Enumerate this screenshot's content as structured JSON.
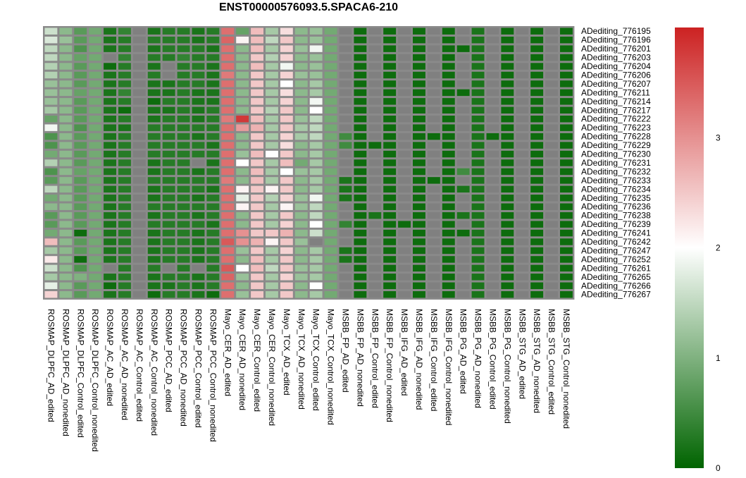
{
  "chart_data": {
    "type": "heatmap",
    "title": "ENST00000576093.5.SPACA6-210",
    "columns": [
      "ROSMAP_DLPFC_AD_edited",
      "ROSMAP_DLPFC_AD_nonedited",
      "ROSMAP_DLPFC_Control_edited",
      "ROSMAP_DLPFC_Control_nonedited",
      "ROSMAP_AC_AD_edited",
      "ROSMAP_AC_AD_nonedited",
      "ROSMAP_AC_Control_edited",
      "ROSMAP_AC_Control_nonedited",
      "ROSMAP_PCC_AD_edited",
      "ROSMAP_PCC_AD_nonedited",
      "ROSMAP_PCC_Control_edited",
      "ROSMAP_PCC_Control_nonedited",
      "Mayo_CER_AD_edited",
      "Mayo_CER_AD_nonedited",
      "Mayo_CER_Control_edited",
      "Mayo_CER_Control_nonedited",
      "Mayo_TCX_AD_edited",
      "Mayo_TCX_AD_nonedited",
      "Mayo_TCX_Control_edited",
      "Mayo_TCX_Control_nonedited",
      "MSBB_FP_AD_edited",
      "MSBB_FP_AD_nonedited",
      "MSBB_FP_Control_edited",
      "MSBB_FP_Control_nonedited",
      "MSBB_IFG_AD_edited",
      "MSBB_IFG_AD_nonedited",
      "MSBB_IFG_Control_edited",
      "MSBB_IFG_Control_nonedited",
      "MSBB_PG_AD_edited",
      "MSBB_PG_AD_nonedited",
      "MSBB_PG_Control_edited",
      "MSBB_PG_Control_nonedited",
      "MSBB_STG_AD_edited",
      "MSBB_STG_AD_nonedited",
      "MSBB_STG_Control_edited",
      "MSBB_STG_Control_nonedited"
    ],
    "rows": [
      "ADediting_776195",
      "ADediting_776196",
      "ADediting_776201",
      "ADediting_776203",
      "ADediting_776204",
      "ADediting_776206",
      "ADediting_776207",
      "ADediting_776211",
      "ADediting_776214",
      "ADediting_776217",
      "ADediting_776222",
      "ADediting_776223",
      "ADediting_776228",
      "ADediting_776229",
      "ADediting_776230",
      "ADediting_776231",
      "ADediting_776232",
      "ADediting_776233",
      "ADediting_776234",
      "ADediting_776235",
      "ADediting_776236",
      "ADediting_776238",
      "ADediting_776239",
      "ADediting_776241",
      "ADediting_776242",
      "ADediting_776247",
      "ADediting_776252",
      "ADediting_776261",
      "ADediting_776265",
      "ADediting_776266",
      "ADediting_776267"
    ],
    "values": [
      [
        1.6,
        1.1,
        0.7,
        0.9,
        0.2,
        0.4,
        null,
        0.2,
        0.3,
        0.3,
        0.2,
        0.3,
        3.3,
        0.8,
        2.6,
        1.3,
        2.3,
        1.1,
        1.2,
        0.9,
        null,
        0.1,
        null,
        0.1,
        null,
        0.1,
        null,
        0.1,
        null,
        0.2,
        null,
        0.1,
        null,
        0.1,
        null,
        0.1
      ],
      [
        1.7,
        1.2,
        0.7,
        0.9,
        0.2,
        0.3,
        null,
        0.3,
        0.3,
        0.3,
        0.2,
        0.3,
        3.4,
        2.1,
        2.6,
        1.5,
        2.5,
        1.1,
        1.2,
        0.9,
        null,
        0.1,
        null,
        0.1,
        null,
        0.1,
        null,
        0.1,
        null,
        0.2,
        null,
        0.1,
        null,
        0.1,
        null,
        0.1
      ],
      [
        1.5,
        1.1,
        0.6,
        0.9,
        0.2,
        0.3,
        null,
        0.2,
        0.3,
        0.3,
        0.3,
        0.2,
        3.3,
        1.1,
        2.6,
        1.3,
        2.4,
        1.2,
        1.9,
        0.9,
        null,
        0.1,
        null,
        0.1,
        null,
        0.1,
        null,
        0.1,
        0.1,
        0.2,
        null,
        0.1,
        null,
        0.1,
        null,
        0.1
      ],
      [
        1.5,
        1.1,
        0.8,
        0.9,
        null,
        0.4,
        null,
        0.3,
        0.3,
        0.4,
        0.3,
        0.3,
        3.3,
        1.1,
        2.5,
        1.4,
        2.4,
        1.1,
        1.2,
        0.9,
        null,
        0.1,
        null,
        0.1,
        null,
        0.1,
        null,
        0.1,
        null,
        0.2,
        null,
        0.1,
        null,
        0.1,
        null,
        0.1
      ],
      [
        1.4,
        1.1,
        0.7,
        0.9,
        0.1,
        0.3,
        null,
        0.2,
        null,
        0.3,
        0.3,
        0.2,
        3.3,
        1.1,
        2.6,
        1.3,
        1.9,
        1.1,
        1.2,
        0.9,
        null,
        0.1,
        null,
        0.1,
        null,
        0.1,
        null,
        0.1,
        null,
        0.2,
        null,
        0.1,
        null,
        0.1,
        null,
        0.1
      ],
      [
        1.4,
        1.1,
        0.7,
        0.9,
        0.2,
        0.3,
        null,
        0.3,
        null,
        0.3,
        0.3,
        0.2,
        3.2,
        1.1,
        2.5,
        1.3,
        2.4,
        1.2,
        1.2,
        0.9,
        null,
        0.1,
        null,
        0.1,
        null,
        0.1,
        null,
        0.1,
        null,
        0.2,
        null,
        0.1,
        null,
        0.1,
        null,
        0.1
      ],
      [
        1.2,
        1.1,
        0.7,
        0.9,
        0.2,
        0.3,
        null,
        0.2,
        0.2,
        0.3,
        0.3,
        0.2,
        3.3,
        1.1,
        2.5,
        1.3,
        2.0,
        1.1,
        1.3,
        0.9,
        null,
        0.1,
        null,
        0.1,
        null,
        0.1,
        null,
        0.1,
        null,
        0.2,
        null,
        0.1,
        null,
        0.1,
        null,
        0.1
      ],
      [
        1.2,
        1.1,
        0.8,
        0.9,
        0.2,
        0.4,
        null,
        0.2,
        0.2,
        0.3,
        0.2,
        0.2,
        3.3,
        1.1,
        2.5,
        1.3,
        2.3,
        1.1,
        1.3,
        0.9,
        null,
        0.1,
        null,
        0.1,
        null,
        0.1,
        null,
        0.1,
        0.1,
        0.2,
        null,
        0.1,
        null,
        0.1,
        null,
        0.1
      ],
      [
        1.2,
        1.1,
        0.7,
        0.9,
        0.2,
        0.3,
        null,
        0.1,
        0.3,
        0.3,
        0.2,
        0.2,
        3.3,
        1.1,
        2.5,
        1.3,
        2.4,
        1.1,
        1.9,
        0.9,
        null,
        0.1,
        null,
        0.1,
        null,
        0.1,
        null,
        0.1,
        null,
        0.2,
        null,
        0.1,
        null,
        0.1,
        null,
        0.1
      ],
      [
        1.3,
        1.1,
        0.7,
        0.9,
        0.2,
        0.1,
        null,
        0.2,
        0.2,
        0.3,
        0.2,
        0.3,
        3.3,
        1.1,
        2.5,
        1.4,
        2.5,
        1.1,
        2.0,
        0.9,
        null,
        0.1,
        null,
        0.1,
        null,
        0.1,
        null,
        0.1,
        null,
        0.2,
        null,
        0.1,
        null,
        0.1,
        null,
        0.1
      ],
      [
        0.8,
        1.1,
        0.7,
        0.9,
        0.2,
        0.3,
        null,
        0.2,
        0.3,
        0.3,
        0.2,
        0.3,
        3.2,
        3.8,
        2.6,
        1.3,
        2.5,
        1.2,
        1.5,
        0.9,
        null,
        0.1,
        null,
        0.1,
        null,
        0.1,
        null,
        0.1,
        null,
        0.2,
        null,
        0.1,
        null,
        0.1,
        null,
        0.1
      ],
      [
        1.9,
        1.1,
        0.6,
        0.9,
        0.2,
        0.2,
        null,
        0.3,
        0.3,
        0.3,
        0.3,
        0.3,
        3.3,
        2.9,
        2.7,
        1.3,
        2.5,
        1.3,
        1.5,
        0.9,
        null,
        0.1,
        null,
        0.1,
        null,
        0.1,
        null,
        0.1,
        null,
        0.2,
        null,
        0.1,
        null,
        0.1,
        null,
        0.1
      ],
      [
        0.6,
        1.1,
        0.7,
        0.9,
        0.2,
        0.3,
        null,
        0.3,
        0.3,
        0.3,
        0.2,
        0.3,
        3.3,
        1.1,
        2.5,
        1.3,
        2.4,
        1.3,
        1.5,
        0.9,
        0.5,
        0.1,
        null,
        0.1,
        null,
        0.1,
        0.1,
        0.1,
        null,
        0.2,
        0.1,
        0.1,
        null,
        0.1,
        null,
        0.1
      ],
      [
        0.6,
        1.1,
        0.7,
        0.9,
        0.2,
        0.3,
        null,
        0.3,
        0.3,
        0.3,
        0.3,
        0.2,
        3.3,
        1.1,
        2.5,
        1.3,
        2.3,
        1.1,
        1.3,
        0.9,
        0.5,
        0.1,
        0.1,
        0.1,
        null,
        0.1,
        null,
        0.1,
        null,
        0.2,
        null,
        0.1,
        null,
        0.1,
        null,
        0.1
      ],
      [
        0.9,
        1.1,
        0.7,
        0.9,
        0.2,
        0.3,
        null,
        0.3,
        0.3,
        0.3,
        0.3,
        0.3,
        3.3,
        1.2,
        2.6,
        2.0,
        2.5,
        1.1,
        1.3,
        0.9,
        null,
        0.1,
        null,
        0.1,
        null,
        0.1,
        null,
        0.1,
        null,
        0.2,
        null,
        0.1,
        null,
        0.1,
        null,
        0.1
      ],
      [
        1.4,
        1.1,
        0.7,
        0.9,
        0.2,
        0.3,
        null,
        0.2,
        0.3,
        0.3,
        null,
        0.2,
        3.3,
        2.0,
        2.5,
        1.3,
        2.6,
        0.9,
        1.3,
        0.9,
        null,
        0.1,
        null,
        0.1,
        null,
        0.1,
        null,
        0.1,
        null,
        0.2,
        null,
        0.1,
        null,
        0.1,
        null,
        0.1
      ],
      [
        0.6,
        1.1,
        0.8,
        0.9,
        0.2,
        0.3,
        null,
        0.2,
        0.3,
        0.3,
        0.2,
        0.3,
        3.3,
        1.1,
        2.6,
        1.3,
        2.0,
        1.2,
        1.3,
        0.9,
        null,
        0.1,
        null,
        0.1,
        null,
        0.1,
        null,
        0.1,
        0.5,
        0.2,
        null,
        0.1,
        null,
        0.1,
        null,
        0.1
      ],
      [
        0.7,
        1.1,
        0.7,
        0.9,
        0.2,
        0.3,
        null,
        0.3,
        0.3,
        0.3,
        0.3,
        0.3,
        3.2,
        1.1,
        2.6,
        1.3,
        2.5,
        1.1,
        1.3,
        0.9,
        0.2,
        0.1,
        null,
        0.1,
        null,
        0.1,
        0.1,
        0.1,
        null,
        0.2,
        null,
        0.1,
        null,
        0.1,
        null,
        0.1
      ],
      [
        1.5,
        1.1,
        0.7,
        0.9,
        0.2,
        0.3,
        null,
        0.2,
        0.3,
        0.3,
        0.3,
        0.2,
        3.3,
        2.1,
        2.5,
        2.1,
        2.5,
        1.1,
        1.3,
        0.9,
        0.2,
        0.1,
        null,
        0.1,
        null,
        0.1,
        null,
        0.1,
        0.2,
        0.2,
        null,
        0.1,
        null,
        0.1,
        null,
        0.1
      ],
      [
        0.9,
        1.1,
        0.7,
        0.9,
        0.2,
        0.3,
        null,
        0.2,
        0.3,
        0.3,
        0.2,
        0.3,
        3.3,
        1.8,
        2.5,
        1.4,
        2.4,
        1.2,
        1.9,
        0.9,
        0.2,
        0.1,
        null,
        0.1,
        null,
        0.1,
        null,
        0.1,
        null,
        0.2,
        null,
        0.1,
        null,
        0.1,
        null,
        0.1
      ],
      [
        1.1,
        1.1,
        0.7,
        0.9,
        0.2,
        0.3,
        null,
        0.3,
        0.3,
        0.3,
        0.3,
        0.3,
        3.3,
        2.1,
        2.5,
        1.3,
        2.1,
        1.2,
        1.5,
        0.9,
        null,
        0.1,
        null,
        0.1,
        null,
        0.1,
        null,
        0.1,
        null,
        0.2,
        null,
        0.1,
        null,
        0.1,
        null,
        0.1
      ],
      [
        0.7,
        1.1,
        0.7,
        0.9,
        0.2,
        0.3,
        null,
        0.2,
        0.3,
        0.3,
        0.2,
        0.3,
        3.3,
        1.1,
        2.5,
        1.3,
        2.5,
        1.1,
        1.5,
        0.9,
        null,
        0.1,
        0.2,
        0.1,
        null,
        0.1,
        null,
        0.1,
        0.2,
        0.2,
        null,
        0.1,
        null,
        0.1,
        null,
        0.1
      ],
      [
        0.7,
        1.1,
        0.7,
        0.9,
        0.2,
        0.3,
        null,
        0.3,
        0.3,
        0.3,
        0.3,
        0.2,
        3.3,
        1.1,
        2.5,
        1.3,
        2.4,
        1.1,
        2.0,
        0.9,
        0.4,
        0.1,
        null,
        0.1,
        0.1,
        0.1,
        null,
        0.1,
        null,
        0.2,
        null,
        0.1,
        null,
        0.1,
        null,
        0.1
      ],
      [
        0.9,
        1.1,
        0.1,
        0.9,
        0.2,
        0.3,
        null,
        0.2,
        0.3,
        0.3,
        0.2,
        0.3,
        3.3,
        3.0,
        2.5,
        2.5,
        2.7,
        1.1,
        1.6,
        0.9,
        null,
        0.1,
        null,
        0.1,
        null,
        0.1,
        null,
        0.1,
        0.1,
        0.2,
        null,
        0.1,
        null,
        0.1,
        null,
        0.1
      ],
      [
        2.6,
        1.1,
        0.7,
        0.9,
        0.2,
        0.3,
        null,
        0.2,
        0.3,
        0.3,
        0.2,
        0.3,
        3.5,
        3.0,
        2.7,
        2.1,
        2.5,
        1.2,
        null,
        0.9,
        null,
        0.1,
        null,
        0.1,
        null,
        0.1,
        null,
        0.1,
        null,
        0.2,
        null,
        0.1,
        null,
        0.1,
        null,
        0.1
      ],
      [
        1.3,
        1.1,
        0.7,
        0.9,
        0.2,
        0.3,
        null,
        0.2,
        0.3,
        0.3,
        0.2,
        0.3,
        3.3,
        1.2,
        2.5,
        1.3,
        2.4,
        1.1,
        1.3,
        0.9,
        0.2,
        0.1,
        null,
        0.1,
        null,
        0.1,
        null,
        0.1,
        null,
        0.2,
        null,
        0.1,
        null,
        0.1,
        null,
        0.1
      ],
      [
        2.2,
        1.1,
        0.1,
        0.9,
        0.2,
        0.3,
        null,
        0.2,
        0.3,
        0.3,
        0.2,
        0.3,
        3.3,
        1.1,
        2.6,
        1.3,
        2.5,
        1.1,
        1.3,
        0.9,
        0.2,
        0.1,
        null,
        0.1,
        null,
        0.1,
        null,
        0.1,
        null,
        0.2,
        null,
        0.1,
        null,
        0.1,
        null,
        0.1
      ],
      [
        1.6,
        1.1,
        0.6,
        0.9,
        null,
        0.3,
        null,
        0.3,
        null,
        0.3,
        null,
        0.3,
        3.5,
        2.0,
        2.6,
        1.5,
        2.5,
        1.2,
        1.3,
        0.9,
        null,
        0.1,
        null,
        0.1,
        null,
        0.1,
        null,
        0.1,
        null,
        0.2,
        null,
        0.1,
        null,
        0.1,
        null,
        0.1
      ],
      [
        1.3,
        1.1,
        1.0,
        0.9,
        0.2,
        0.3,
        null,
        0.2,
        0.3,
        0.3,
        0.2,
        0.3,
        3.4,
        1.2,
        2.5,
        1.3,
        2.4,
        1.2,
        1.3,
        0.9,
        null,
        0.1,
        null,
        0.1,
        null,
        0.1,
        null,
        0.1,
        null,
        0.2,
        null,
        0.1,
        null,
        0.1,
        null,
        0.1
      ],
      [
        1.8,
        1.1,
        0.7,
        0.9,
        0.1,
        0.3,
        null,
        0.2,
        0.2,
        0.3,
        0.2,
        0.3,
        3.3,
        1.1,
        2.5,
        1.3,
        2.5,
        1.1,
        2.0,
        0.9,
        null,
        0.1,
        null,
        0.1,
        null,
        0.1,
        null,
        0.1,
        null,
        0.2,
        null,
        0.1,
        null,
        0.1,
        null,
        0.1
      ],
      [
        2.4,
        1.1,
        0.7,
        0.9,
        0.2,
        0.3,
        null,
        0.1,
        0.3,
        0.3,
        0.2,
        0.1,
        3.3,
        1.2,
        2.5,
        1.3,
        2.5,
        1.1,
        1.3,
        0.9,
        null,
        0.1,
        null,
        0.1,
        null,
        0.1,
        null,
        0.1,
        null,
        0.2,
        null,
        0.1,
        null,
        0.1,
        null,
        0.1
      ]
    ],
    "na_color": "#808080",
    "color_scale": {
      "min": 0,
      "mid": 2,
      "max": 4,
      "low": "#006400",
      "midc": "#ffffff",
      "high": "#cc2222"
    },
    "legend": {
      "ticks": [
        0,
        1,
        2,
        3
      ],
      "min": 0,
      "max": 4
    }
  }
}
